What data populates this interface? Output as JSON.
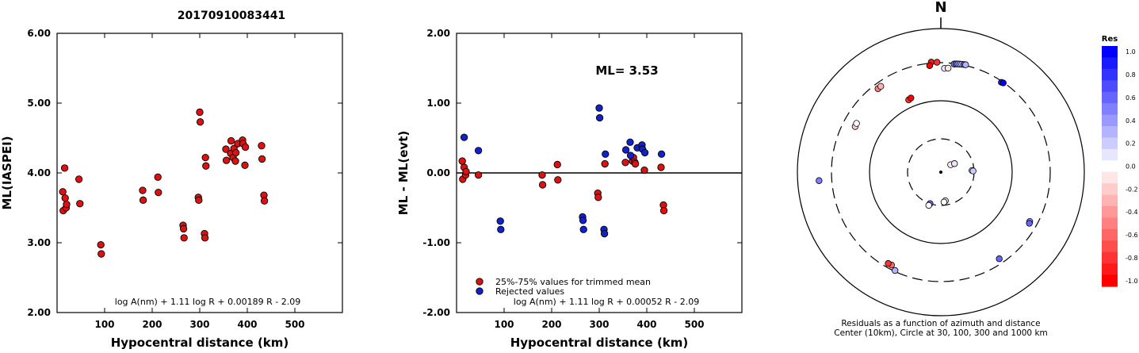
{
  "title": "20170910083441",
  "colors": {
    "red": "#dd1111",
    "blue": "#1122cc",
    "stroke": "#000000"
  },
  "chart_data": [
    {
      "type": "scatter",
      "xlabel": "Hypocentral distance (km)",
      "ylabel": "ML(IASPEI)",
      "xlim": [
        0,
        600
      ],
      "ylim": [
        2.0,
        6.0
      ],
      "xticks": [
        "100",
        "200",
        "300",
        "400",
        "500"
      ],
      "xtick_values": [
        100,
        200,
        300,
        400,
        500
      ],
      "yticks": [
        "2.00",
        "3.00",
        "4.00",
        "5.00",
        "6.00"
      ],
      "ytick_values": [
        2,
        3,
        4,
        5,
        6
      ],
      "formula": "log A(nm) + 1.11 log R + 0.00189 R - 2.09",
      "series": [
        {
          "color": "red",
          "points": [
            [
              12,
              3.73
            ],
            [
              13,
              3.46
            ],
            [
              16,
              4.07
            ],
            [
              17,
              3.64
            ],
            [
              19,
              3.5
            ],
            [
              20,
              3.55
            ],
            [
              46,
              3.91
            ],
            [
              48,
              3.56
            ],
            [
              92,
              2.97
            ],
            [
              93,
              2.84
            ],
            [
              180,
              3.75
            ],
            [
              181,
              3.61
            ],
            [
              212,
              3.94
            ],
            [
              213,
              3.72
            ],
            [
              265,
              3.25
            ],
            [
              266,
              3.2
            ],
            [
              267,
              3.07
            ],
            [
              297,
              3.65
            ],
            [
              298,
              3.61
            ],
            [
              300,
              4.87
            ],
            [
              301,
              4.73
            ],
            [
              310,
              3.13
            ],
            [
              311,
              3.07
            ],
            [
              312,
              4.22
            ],
            [
              313,
              4.1
            ],
            [
              355,
              4.34
            ],
            [
              356,
              4.18
            ],
            [
              365,
              4.28
            ],
            [
              366,
              4.46
            ],
            [
              370,
              4.22
            ],
            [
              372,
              4.35
            ],
            [
              375,
              4.17
            ],
            [
              376,
              4.29
            ],
            [
              380,
              4.42
            ],
            [
              390,
              4.47
            ],
            [
              391,
              4.42
            ],
            [
              395,
              4.11
            ],
            [
              396,
              4.37
            ],
            [
              430,
              4.39
            ],
            [
              431,
              4.2
            ],
            [
              435,
              3.68
            ],
            [
              436,
              3.6
            ]
          ]
        }
      ]
    },
    {
      "type": "scatter",
      "xlabel": "Hypocentral distance (km)",
      "ylabel": "ML - ML(evt)",
      "xlim": [
        0,
        600
      ],
      "ylim": [
        -2.0,
        2.0
      ],
      "xticks": [
        "100",
        "200",
        "300",
        "400",
        "500"
      ],
      "xtick_values": [
        100,
        200,
        300,
        400,
        500
      ],
      "yticks": [
        "-2.00",
        "-1.00",
        "0.00",
        "1.00",
        "2.00"
      ],
      "ytick_values": [
        -2,
        -1,
        0,
        1,
        2
      ],
      "annotation": "ML= 3.53",
      "hline": 0,
      "legend": [
        "25%-75% values for trimmed mean",
        "Rejected values"
      ],
      "formula": "log A(nm) + 1.11 log R + 0.00052 R - 2.09",
      "series": [
        {
          "color": "red",
          "points": [
            [
              12,
              0.17
            ],
            [
              13,
              -0.09
            ],
            [
              16,
              0.08
            ],
            [
              19,
              -0.03
            ],
            [
              20,
              0.02
            ],
            [
              46,
              -0.03
            ],
            [
              180,
              -0.03
            ],
            [
              181,
              -0.17
            ],
            [
              212,
              0.12
            ],
            [
              213,
              -0.1
            ],
            [
              297,
              -0.29
            ],
            [
              298,
              -0.35
            ],
            [
              312,
              0.13
            ],
            [
              355,
              0.15
            ],
            [
              370,
              0.17
            ],
            [
              372,
              0.22
            ],
            [
              375,
              0.15
            ],
            [
              376,
              0.13
            ],
            [
              395,
              0.04
            ],
            [
              430,
              0.08
            ],
            [
              435,
              -0.46
            ],
            [
              436,
              -0.54
            ]
          ]
        },
        {
          "color": "blue",
          "points": [
            [
              16,
              0.51
            ],
            [
              46,
              0.32
            ],
            [
              92,
              -0.69
            ],
            [
              93,
              -0.81
            ],
            [
              265,
              -0.63
            ],
            [
              266,
              -0.68
            ],
            [
              267,
              -0.81
            ],
            [
              300,
              0.93
            ],
            [
              301,
              0.79
            ],
            [
              310,
              -0.81
            ],
            [
              311,
              -0.87
            ],
            [
              313,
              0.27
            ],
            [
              356,
              0.33
            ],
            [
              365,
              0.44
            ],
            [
              366,
              0.25
            ],
            [
              380,
              0.36
            ],
            [
              390,
              0.4
            ],
            [
              391,
              0.34
            ],
            [
              396,
              0.29
            ],
            [
              431,
              0.27
            ]
          ]
        }
      ]
    },
    {
      "type": "polar",
      "north_label": "N",
      "caption": [
        "Residuals as a function of azimuth and distance",
        "Center (10km), Circle at 30, 100, 300 and 1000 km"
      ],
      "colorbar": {
        "title": "Res",
        "labels": [
          "1.0",
          "0.8",
          "0.6",
          "0.4",
          "0.2",
          "0.0",
          "-0.2",
          "-0.4",
          "-0.6",
          "-0.8",
          "-1.0"
        ],
        "levels": [
          1.0,
          0.9,
          0.8,
          0.7,
          0.6,
          0.5,
          0.4,
          0.3,
          0.2,
          0.1,
          0.0,
          -0.1,
          -0.2,
          -0.3,
          -0.4,
          -0.5,
          -0.6,
          -0.7,
          -0.8,
          -0.9,
          -1.0
        ]
      },
      "stations": [
        {
          "az": 355,
          "dist_km": 310,
          "res": -0.9
        },
        {
          "az": 358,
          "dist_km": 305,
          "res": -0.8
        },
        {
          "az": 354,
          "dist_km": 280,
          "res": -1.0
        },
        {
          "az": 2,
          "dist_km": 255,
          "res": 0.1
        },
        {
          "az": 4,
          "dist_km": 258,
          "res": -0.1
        },
        {
          "az": 7,
          "dist_km": 295,
          "res": 0.5
        },
        {
          "az": 8,
          "dist_km": 298,
          "res": 0.6
        },
        {
          "az": 9,
          "dist_km": 300,
          "res": 0.4
        },
        {
          "az": 10,
          "dist_km": 302,
          "res": 0.3
        },
        {
          "az": 11,
          "dist_km": 304,
          "res": 0.2
        },
        {
          "az": 12,
          "dist_km": 306,
          "res": 0.6
        },
        {
          "az": 13,
          "dist_km": 308,
          "res": 0.3
        },
        {
          "az": 34,
          "dist_km": 290,
          "res": 0.9
        },
        {
          "az": 35,
          "dist_km": 295,
          "res": 1.0
        },
        {
          "az": 323,
          "dist_km": 260,
          "res": -0.5
        },
        {
          "az": 325,
          "dist_km": 262,
          "res": -0.3
        },
        {
          "az": 336,
          "dist_km": 125,
          "res": -0.8
        },
        {
          "az": 338,
          "dist_km": 128,
          "res": -1.0
        },
        {
          "az": 298,
          "dist_km": 210,
          "res": -0.2
        },
        {
          "az": 300,
          "dist_km": 212,
          "res": 0.0
        },
        {
          "az": 266,
          "dist_km": 470,
          "res": 0.5
        },
        {
          "az": 53,
          "dist_km": 15,
          "res": -0.1
        },
        {
          "az": 58,
          "dist_km": 17,
          "res": 0.1
        },
        {
          "az": 87,
          "dist_km": 28,
          "res": -0.1
        },
        {
          "az": 88,
          "dist_km": 29,
          "res": 0.2
        },
        {
          "az": 171,
          "dist_km": 26,
          "res": -0.1
        },
        {
          "az": 174,
          "dist_km": 27,
          "res": 0.0
        },
        {
          "az": 199,
          "dist_km": 30,
          "res": 0.6
        },
        {
          "az": 200,
          "dist_km": 32,
          "res": 0.0
        },
        {
          "az": 119,
          "dist_km": 240,
          "res": 0.4
        },
        {
          "az": 120,
          "dist_km": 244,
          "res": 0.6
        },
        {
          "az": 146,
          "dist_km": 260,
          "res": 0.6
        },
        {
          "az": 208,
          "dist_km": 265,
          "res": -0.6
        },
        {
          "az": 210,
          "dist_km": 267,
          "res": -0.8
        },
        {
          "az": 205,
          "dist_km": 292,
          "res": 0.3
        }
      ]
    }
  ]
}
